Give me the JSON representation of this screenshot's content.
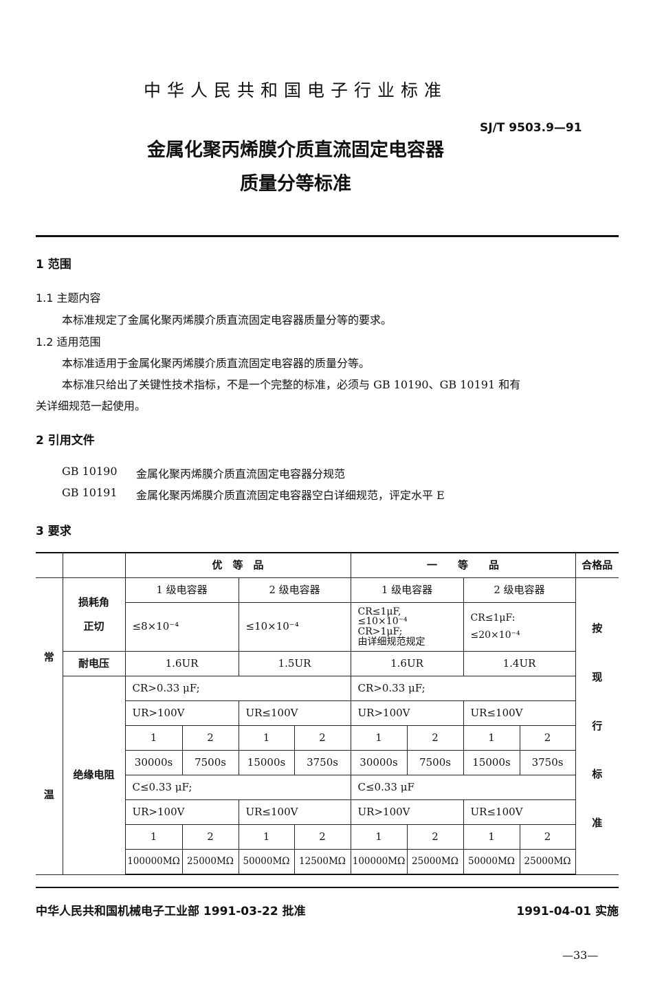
{
  "header": {
    "org": "中华人民共和国电子行业标准",
    "code": "SJ/T 9503.9—91",
    "title1": "金属化聚丙烯膜介质直流固定电容器",
    "title2": "质量分等标准"
  },
  "s1": {
    "heading": "1  范围",
    "h11": "1.1   主题内容",
    "p11": "本标准规定了金属化聚丙烯膜介质直流固定电容器质量分等的要求。",
    "h12": "1.2   适用范围",
    "p12a": "本标准适用于金属化聚丙烯膜介质直流固定电容器的质量分等。",
    "p12b1": "本标准只给出了关键性技术指标，不是一个完整的标准，必须与 GB 10190、GB 10191 和有",
    "p12b2": "关详细规范一起使用。"
  },
  "s2": {
    "heading": "2  引用文件",
    "refs": [
      {
        "code": "GB 10190",
        "text": "金属化聚丙烯膜介质直流固定电容器分规范"
      },
      {
        "code": "GB 10191",
        "text": "金属化聚丙烯膜介质直流固定电容器空白详细规范，评定水平   E"
      }
    ]
  },
  "s3": {
    "heading": "3  要求"
  },
  "table": {
    "grade_top": "优　等　品",
    "grade_first": "一　　等　　品",
    "grade_qualified": "合格品",
    "cond_top": "常",
    "cond_bottom": "温",
    "class1": "1 级电容器",
    "class2": "2 级电容器",
    "tan_label1": "损耗角",
    "tan_label2": "正切",
    "tan_top1": "≤8×10⁻⁴",
    "tan_top2": "≤10×10⁻⁴",
    "tan_first1": [
      "CR≤1μF,",
      "≤10×10⁻⁴",
      "CR>1μF;",
      "由详细规范规定"
    ],
    "tan_first2": [
      "CR≤1μF:",
      "≤20×10⁻⁴"
    ],
    "volt_label": "耐电压",
    "volt": [
      "1.6UR",
      "1.5UR",
      "1.6UR",
      "1.4UR"
    ],
    "ir_label": "绝缘电阻",
    "qualified_text": [
      "按",
      "现",
      "行",
      "标",
      "准"
    ],
    "cap_hi_top": "CR>0.33 μF;",
    "cap_hi_first": "CR>0.33 μF;",
    "cap_lo_top": "C≤0.33 μF;",
    "cap_lo_first": "C≤0.33 μF",
    "ur": [
      "UR>100V",
      "UR≤100V",
      "UR>100V",
      "UR≤100V"
    ],
    "sub": [
      "1",
      "2",
      "1",
      "2",
      "1",
      "2",
      "1",
      "2"
    ],
    "ir_hi": [
      "30000s",
      "7500s",
      "15000s",
      "3750s",
      "30000s",
      "7500s",
      "15000s",
      "3750s"
    ],
    "ir_lo": [
      "100000MΩ",
      "25000MΩ",
      "50000MΩ",
      "12500MΩ",
      "100000MΩ",
      "25000MΩ",
      "50000MΩ",
      "25000MΩ"
    ]
  },
  "footer": {
    "approve": "中华人民共和国机械电子工业部 1991-03-22 批准",
    "implement": "1991-04-01 实施",
    "page": "—33—"
  }
}
